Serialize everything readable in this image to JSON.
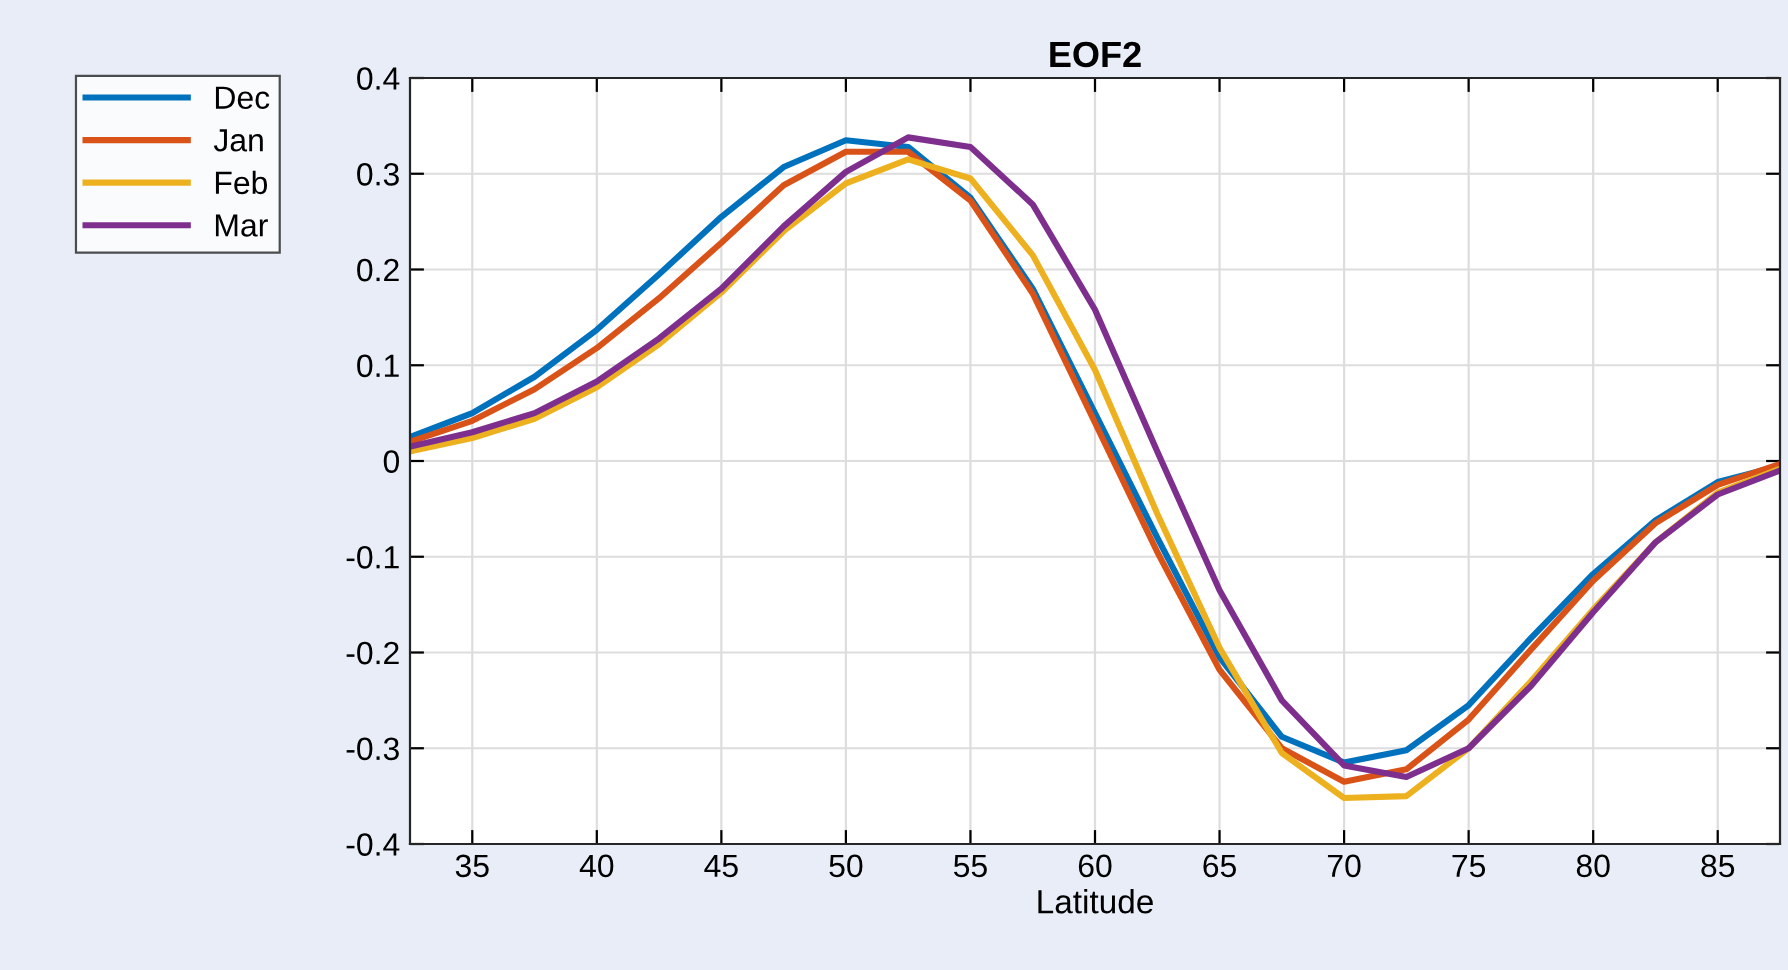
{
  "chart_data": {
    "type": "line",
    "title": "EOF2",
    "xlabel": "Latitude",
    "x": [
      32.5,
      35,
      37.5,
      40,
      42.5,
      45,
      47.5,
      50,
      52.5,
      55,
      57.5,
      60,
      62.5,
      65,
      67.5,
      70,
      72.5,
      75,
      77.5,
      80,
      82.5,
      85,
      87.5
    ],
    "series": [
      {
        "name": "Dec",
        "color": "#0072bd",
        "values": [
          0.025,
          0.05,
          0.088,
          0.137,
          0.195,
          0.255,
          0.307,
          0.335,
          0.328,
          0.275,
          0.18,
          0.05,
          -0.08,
          -0.205,
          -0.288,
          -0.315,
          -0.302,
          -0.255,
          -0.185,
          -0.118,
          -0.062,
          -0.022,
          -0.005
        ]
      },
      {
        "name": "Jan",
        "color": "#d95319",
        "values": [
          0.02,
          0.042,
          0.075,
          0.118,
          0.17,
          0.228,
          0.288,
          0.323,
          0.323,
          0.272,
          0.175,
          0.04,
          -0.095,
          -0.218,
          -0.3,
          -0.335,
          -0.322,
          -0.27,
          -0.197,
          -0.125,
          -0.065,
          -0.025,
          -0.003
        ]
      },
      {
        "name": "Feb",
        "color": "#edb120",
        "values": [
          0.01,
          0.024,
          0.044,
          0.077,
          0.122,
          0.176,
          0.24,
          0.29,
          0.315,
          0.295,
          0.215,
          0.095,
          -0.055,
          -0.195,
          -0.305,
          -0.352,
          -0.35,
          -0.3,
          -0.23,
          -0.155,
          -0.085,
          -0.033,
          -0.008
        ]
      },
      {
        "name": "Mar",
        "color": "#7e2f8e",
        "values": [
          0.015,
          0.03,
          0.05,
          0.083,
          0.128,
          0.18,
          0.245,
          0.302,
          0.338,
          0.328,
          0.268,
          0.158,
          0.01,
          -0.135,
          -0.25,
          -0.318,
          -0.33,
          -0.3,
          -0.235,
          -0.158,
          -0.085,
          -0.035,
          -0.01
        ]
      }
    ],
    "xlim": [
      32.5,
      87.5
    ],
    "xticks": [
      35,
      40,
      45,
      50,
      55,
      60,
      65,
      70,
      75,
      80,
      85
    ],
    "ylim": [
      -0.4,
      0.4
    ],
    "yticks": [
      -0.4,
      -0.3,
      -0.2,
      -0.1,
      0,
      0.1,
      0.2,
      0.3,
      0.4
    ],
    "grid": true,
    "legend": "top left",
    "marker": "none",
    "line_style": "solid"
  }
}
